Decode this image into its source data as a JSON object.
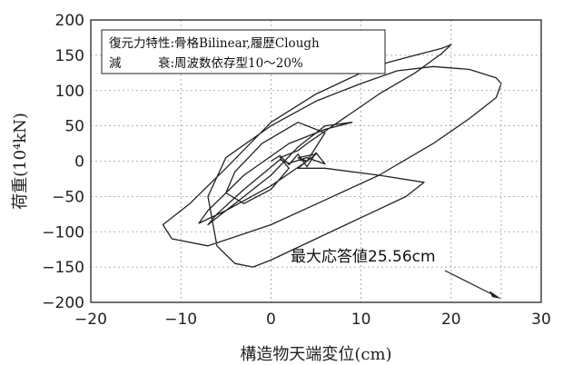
{
  "chart_data": {
    "type": "line",
    "xlabel": "構造物天端変位(cm)",
    "ylabel": "荷重(10⁴kN)",
    "xlim": [
      -20,
      30
    ],
    "ylim": [
      -200,
      200
    ],
    "x_ticks": [
      -20,
      -10,
      0,
      10,
      20,
      30
    ],
    "y_ticks": [
      200,
      150,
      100,
      50,
      0,
      -50,
      -100,
      -150,
      -200
    ],
    "grid": true,
    "annotation_lines": [
      "復元力特性:骨格Bilinear,履歴Clough",
      "減　　　衰:周波数依存型10～20%"
    ],
    "callout": {
      "text": "最大応答値25.56cm",
      "target": {
        "x": 25.56,
        "y": -195
      }
    },
    "series": [
      {
        "values": [
          [
            0,
            0
          ],
          [
            1,
            8
          ],
          [
            2,
            -5
          ],
          [
            3,
            10
          ],
          [
            4,
            -8
          ],
          [
            5,
            12
          ],
          [
            6,
            -4
          ],
          [
            4,
            5
          ],
          [
            2,
            -3
          ],
          [
            1,
            2
          ],
          [
            -3,
            -40
          ],
          [
            -6,
            -75
          ],
          [
            -7,
            -90
          ],
          [
            -4,
            -60
          ],
          [
            0,
            -20
          ],
          [
            3,
            20
          ],
          [
            6,
            50
          ],
          [
            9,
            55
          ],
          [
            6,
            45
          ],
          [
            2,
            25
          ],
          [
            -3,
            -20
          ],
          [
            -7,
            -70
          ],
          [
            -8,
            -88
          ],
          [
            -5,
            -70
          ],
          [
            0,
            -35
          ],
          [
            4,
            0
          ],
          [
            6,
            40
          ],
          [
            3,
            55
          ],
          [
            -1,
            25
          ],
          [
            -4,
            -15
          ],
          [
            -5,
            -45
          ],
          [
            -3,
            -60
          ],
          [
            0,
            -40
          ],
          [
            2,
            -10
          ],
          [
            1,
            5
          ],
          [
            3,
            15
          ],
          [
            4,
            25
          ],
          [
            8,
            60
          ],
          [
            12,
            95
          ],
          [
            16,
            125
          ],
          [
            19,
            153
          ],
          [
            20,
            165
          ],
          [
            19,
            160
          ],
          [
            16,
            150
          ],
          [
            13,
            140
          ],
          [
            10,
            125
          ],
          [
            5,
            95
          ],
          [
            0,
            55
          ],
          [
            -5,
            -10
          ],
          [
            -9,
            -60
          ],
          [
            -12,
            -90
          ],
          [
            -11,
            -110
          ],
          [
            -7,
            -120
          ],
          [
            0,
            -90
          ],
          [
            6,
            -55
          ],
          [
            12,
            -20
          ],
          [
            18,
            25
          ],
          [
            22,
            60
          ],
          [
            25,
            90
          ],
          [
            25.56,
            110
          ],
          [
            25,
            118
          ],
          [
            22,
            130
          ],
          [
            18,
            134
          ],
          [
            14,
            128
          ],
          [
            10,
            110
          ],
          [
            5,
            85
          ],
          [
            0,
            50
          ],
          [
            -5,
            5
          ],
          [
            -7,
            -50
          ],
          [
            -6,
            -120
          ],
          [
            -4,
            -145
          ],
          [
            -2,
            -150
          ],
          [
            0,
            -140
          ],
          [
            5,
            -110
          ],
          [
            10,
            -80
          ],
          [
            15,
            -50
          ],
          [
            17,
            -30
          ],
          [
            12,
            -20
          ],
          [
            6,
            -10
          ],
          [
            3,
            -10
          ],
          [
            4,
            0
          ],
          [
            3,
            5
          ],
          [
            5,
            10
          ],
          [
            4,
            0
          ],
          [
            3,
            2
          ]
        ]
      }
    ]
  }
}
